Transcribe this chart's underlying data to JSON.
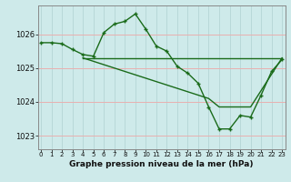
{
  "title": "Graphe pression niveau de la mer (hPa)",
  "background_color": "#ceeaea",
  "grid_color": "#b8d8d8",
  "line_color": "#1a6b1a",
  "x_ticks": [
    0,
    1,
    2,
    3,
    4,
    5,
    6,
    7,
    8,
    9,
    10,
    11,
    12,
    13,
    14,
    15,
    16,
    17,
    18,
    19,
    20,
    21,
    22,
    23
  ],
  "y_ticks": [
    1023,
    1024,
    1025,
    1026
  ],
  "ylim": [
    1022.6,
    1026.85
  ],
  "xlim": [
    -0.3,
    23.3
  ],
  "line1_x": [
    0,
    1,
    2,
    3,
    4,
    5,
    6,
    7,
    8,
    9,
    10,
    11,
    12,
    13,
    14,
    15,
    16,
    17,
    18,
    19,
    20,
    21,
    22,
    23
  ],
  "line1_y": [
    1025.75,
    1025.75,
    1025.72,
    1025.55,
    1025.4,
    1025.35,
    1026.05,
    1026.3,
    1026.38,
    1026.6,
    1026.15,
    1025.65,
    1025.5,
    1025.05,
    1024.85,
    1024.55,
    1023.85,
    1023.2,
    1023.2,
    1023.6,
    1023.55,
    1024.2,
    1024.9,
    1025.25
  ],
  "line2_x": [
    4,
    23
  ],
  "line2_y": [
    1025.3,
    1025.3
  ],
  "line3_x": [
    4,
    16,
    17,
    18,
    19,
    20,
    23
  ],
  "line3_y": [
    1025.3,
    1024.1,
    1023.85,
    1023.85,
    1023.85,
    1023.85,
    1025.3
  ],
  "marker": "+",
  "marker_size": 3.5,
  "linewidth": 1.0
}
